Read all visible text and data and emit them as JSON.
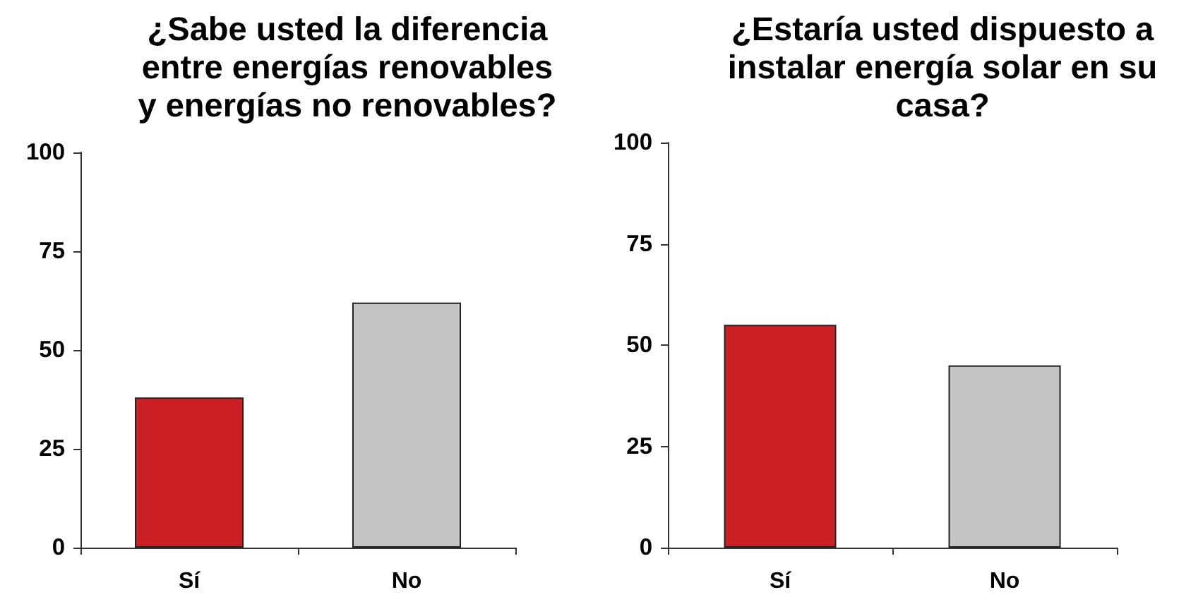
{
  "chart_data": [
    {
      "type": "bar",
      "title": "¿Sabe usted la diferencia entre energías renovables y energías no renovables?",
      "categories": [
        "Sí",
        "No"
      ],
      "values": [
        38,
        62
      ],
      "colors": [
        "#cc2027",
        "#c4c5c7"
      ],
      "ylim": [
        0,
        100
      ],
      "yticks": [
        0,
        25,
        50,
        75,
        100
      ]
    },
    {
      "type": "bar",
      "title": "¿Estaría usted dispuesto a instalar energía solar en su casa?",
      "categories": [
        "Sí",
        "No"
      ],
      "values": [
        55,
        45
      ],
      "colors": [
        "#cc2027",
        "#c4c5c7"
      ],
      "ylim": [
        0,
        100
      ],
      "yticks": [
        0,
        25,
        50,
        75,
        100
      ]
    }
  ]
}
